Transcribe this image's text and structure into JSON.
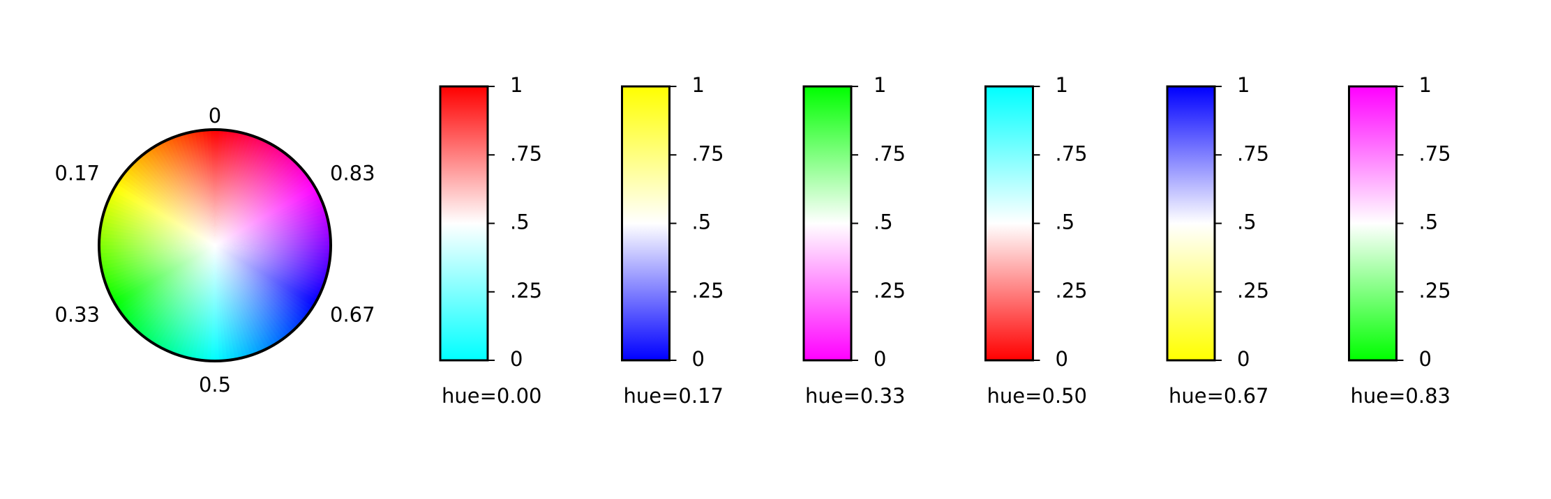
{
  "chart_data": [
    {
      "type": "colorwheel",
      "labels": [
        {
          "text": "0",
          "hue": 0
        },
        {
          "text": "0.17",
          "hue": 0.17
        },
        {
          "text": "0.33",
          "hue": 0.33
        },
        {
          "text": "0.5",
          "hue": 0.5
        },
        {
          "text": "0.67",
          "hue": 0.67
        },
        {
          "text": "0.83",
          "hue": 0.83
        }
      ]
    },
    {
      "type": "colorbar",
      "hues": [
        0.0,
        0.17,
        0.33,
        0.5,
        0.67,
        0.83
      ],
      "xlabels": [
        "hue=0.00",
        "hue=0.17",
        "hue=0.33",
        "hue=0.50",
        "hue=0.67",
        "hue=0.83"
      ],
      "ylim": [
        0,
        1
      ],
      "yticks": [
        0,
        0.25,
        0.5,
        0.75,
        1
      ],
      "yticklabels": [
        "0",
        ".25",
        ".5",
        ".75",
        "1"
      ],
      "colors": [
        {
          "top": "#ff0000",
          "mid": "#ffffff",
          "bottom": "#00ffff"
        },
        {
          "top": "#ffff00",
          "mid": "#ffffff",
          "bottom": "#0000ff"
        },
        {
          "top": "#00ff00",
          "mid": "#ffffff",
          "bottom": "#ff00ff"
        },
        {
          "top": "#00ffff",
          "mid": "#ffffff",
          "bottom": "#ff0000"
        },
        {
          "top": "#0000ff",
          "mid": "#ffffff",
          "bottom": "#ffff00"
        },
        {
          "top": "#ff00ff",
          "mid": "#ffffff",
          "bottom": "#00ff00"
        }
      ]
    }
  ]
}
